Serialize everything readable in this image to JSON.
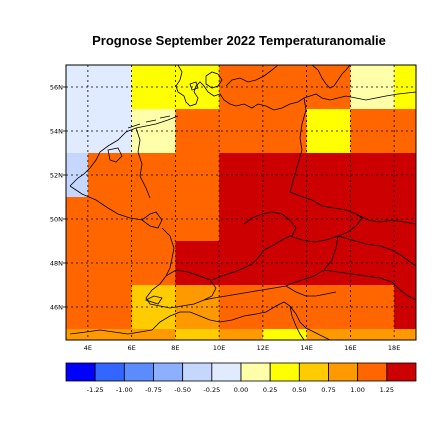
{
  "title": "Prognose September 2022 Temperaturanomalie",
  "lat_labels": [
    "56N",
    "54N",
    "52N",
    "50N",
    "48N",
    "46N"
  ],
  "lon_labels": [
    "4E",
    "6E",
    "8E",
    "10E",
    "12E",
    "14E",
    "16E",
    "18E"
  ],
  "map_extent": {
    "lon": [
      3,
      19
    ],
    "lat": [
      44.5,
      57
    ]
  },
  "grid_cells": [
    {
      "lon": 3,
      "lat": 56,
      "color": "#e0ebff"
    },
    {
      "lon": 5,
      "lat": 56,
      "color": "#e0ebff"
    },
    {
      "lon": 7,
      "lat": 56,
      "color": "#ffff00"
    },
    {
      "lon": 9,
      "lat": 56,
      "color": "#ffff00"
    },
    {
      "lon": 11,
      "lat": 56,
      "color": "#ff6600"
    },
    {
      "lon": 13,
      "lat": 56,
      "color": "#ff6600"
    },
    {
      "lon": 15,
      "lat": 56,
      "color": "#ff6600"
    },
    {
      "lon": 17,
      "lat": 56,
      "color": "#ffffaa"
    },
    {
      "lon": 19,
      "lat": 56,
      "color": "#ffff00"
    },
    {
      "lon": 3,
      "lat": 54,
      "color": "#e0ebff"
    },
    {
      "lon": 5,
      "lat": 54,
      "color": "#e0ebff"
    },
    {
      "lon": 7,
      "lat": 54,
      "color": "#ffffaa"
    },
    {
      "lon": 9,
      "lat": 54,
      "color": "#ff6600"
    },
    {
      "lon": 11,
      "lat": 54,
      "color": "#ff6600"
    },
    {
      "lon": 13,
      "lat": 54,
      "color": "#ff6600"
    },
    {
      "lon": 15,
      "lat": 54,
      "color": "#ffff00"
    },
    {
      "lon": 17,
      "lat": 54,
      "color": "#ff6600"
    },
    {
      "lon": 19,
      "lat": 54,
      "color": "#ff6600"
    },
    {
      "lon": 3,
      "lat": 52,
      "color": "#c5d7ff"
    },
    {
      "lon": 5,
      "lat": 52,
      "color": "#ff6600"
    },
    {
      "lon": 7,
      "lat": 52,
      "color": "#ff6600"
    },
    {
      "lon": 9,
      "lat": 52,
      "color": "#ff6600"
    },
    {
      "lon": 11,
      "lat": 52,
      "color": "#cc0000"
    },
    {
      "lon": 13,
      "lat": 52,
      "color": "#cc0000"
    },
    {
      "lon": 15,
      "lat": 52,
      "color": "#cc0000"
    },
    {
      "lon": 17,
      "lat": 52,
      "color": "#cc0000"
    },
    {
      "lon": 19,
      "lat": 52,
      "color": "#cc0000"
    },
    {
      "lon": 3,
      "lat": 50,
      "color": "#ff6600"
    },
    {
      "lon": 5,
      "lat": 50,
      "color": "#ff6600"
    },
    {
      "lon": 7,
      "lat": 50,
      "color": "#ff6600"
    },
    {
      "lon": 9,
      "lat": 50,
      "color": "#ff6600"
    },
    {
      "lon": 11,
      "lat": 50,
      "color": "#cc0000"
    },
    {
      "lon": 13,
      "lat": 50,
      "color": "#cc0000"
    },
    {
      "lon": 15,
      "lat": 50,
      "color": "#cc0000"
    },
    {
      "lon": 17,
      "lat": 50,
      "color": "#cc0000"
    },
    {
      "lon": 19,
      "lat": 50,
      "color": "#cc0000"
    },
    {
      "lon": 3,
      "lat": 48,
      "color": "#ff6600"
    },
    {
      "lon": 5,
      "lat": 48,
      "color": "#ff6600"
    },
    {
      "lon": 7,
      "lat": 48,
      "color": "#ff6600"
    },
    {
      "lon": 9,
      "lat": 48,
      "color": "#cc0000"
    },
    {
      "lon": 11,
      "lat": 48,
      "color": "#cc0000"
    },
    {
      "lon": 13,
      "lat": 48,
      "color": "#cc0000"
    },
    {
      "lon": 15,
      "lat": 48,
      "color": "#cc0000"
    },
    {
      "lon": 17,
      "lat": 48,
      "color": "#cc0000"
    },
    {
      "lon": 19,
      "lat": 48,
      "color": "#cc0000"
    },
    {
      "lon": 3,
      "lat": 46,
      "color": "#ff6600"
    },
    {
      "lon": 5,
      "lat": 46,
      "color": "#ff6600"
    },
    {
      "lon": 7,
      "lat": 46,
      "color": "#ffcc00"
    },
    {
      "lon": 9,
      "lat": 46,
      "color": "#ff9900"
    },
    {
      "lon": 11,
      "lat": 46,
      "color": "#ff6600"
    },
    {
      "lon": 13,
      "lat": 46,
      "color": "#ff6600"
    },
    {
      "lon": 15,
      "lat": 46,
      "color": "#ff6600"
    },
    {
      "lon": 17,
      "lat": 46,
      "color": "#ff6600"
    },
    {
      "lon": 19,
      "lat": 46,
      "color": "#cc0000"
    },
    {
      "lon": 3,
      "lat": 44,
      "color": "#ff9900"
    },
    {
      "lon": 5,
      "lat": 44,
      "color": "#ff9900"
    },
    {
      "lon": 7,
      "lat": 44,
      "color": "#ff9900"
    },
    {
      "lon": 9,
      "lat": 44,
      "color": "#ffcc00"
    },
    {
      "lon": 11,
      "lat": 44,
      "color": "#ff9900"
    },
    {
      "lon": 13,
      "lat": 44,
      "color": "#ffff00"
    },
    {
      "lon": 15,
      "lat": 44,
      "color": "#ff9900"
    },
    {
      "lon": 17,
      "lat": 44,
      "color": "#ff9900"
    },
    {
      "lon": 19,
      "lat": 44,
      "color": "#ff9900"
    }
  ],
  "legend": {
    "colors": [
      "#0000ff",
      "#3366ff",
      "#5a8cff",
      "#8cb0ff",
      "#c5d7ff",
      "#e0ebff",
      "#ffffaa",
      "#ffff00",
      "#ffcc00",
      "#ff9900",
      "#ff6600",
      "#cc0000"
    ],
    "labels": [
      "-1.25",
      "-1.00",
      "-0.75",
      "-0.50",
      "-0.25",
      "0.00",
      "0.25",
      "0.50",
      "0.75",
      "1.00",
      "1.25"
    ]
  }
}
